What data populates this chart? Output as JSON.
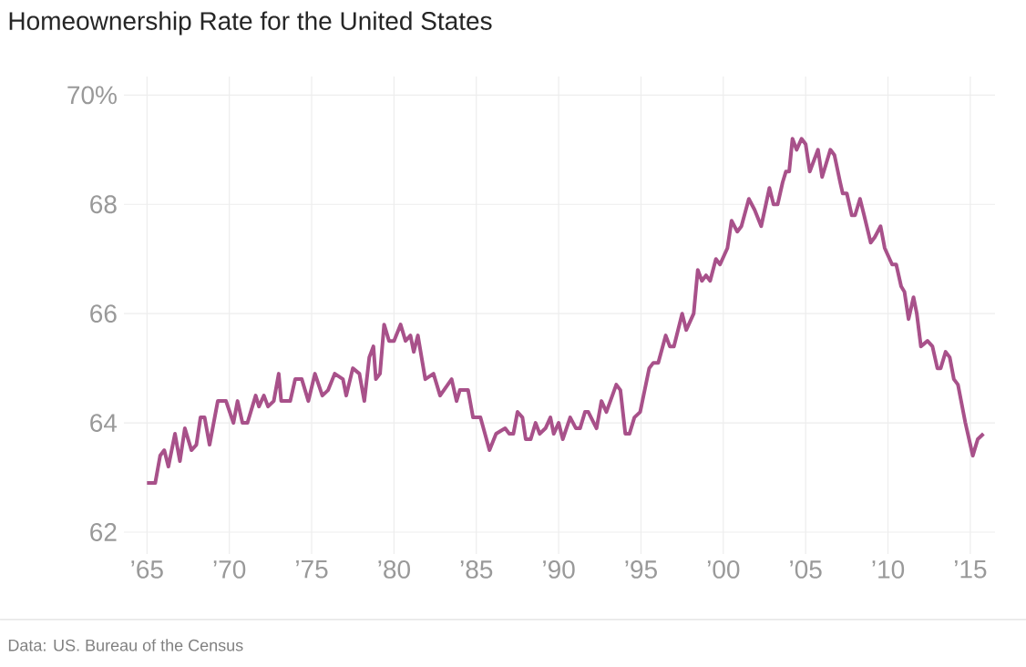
{
  "chart_data": {
    "type": "line",
    "title": "Homeownership Rate for the United States",
    "x": [
      1965.0,
      1965.5,
      1965.8,
      1966.05,
      1966.3,
      1966.7,
      1967.0,
      1967.3,
      1967.7,
      1968.0,
      1968.25,
      1968.5,
      1968.8,
      1969.3,
      1969.8,
      1970.25,
      1970.5,
      1970.8,
      1971.1,
      1971.6,
      1971.8,
      1972.1,
      1972.35,
      1972.7,
      1973.0,
      1973.15,
      1973.7,
      1974.0,
      1974.4,
      1974.8,
      1975.2,
      1975.65,
      1976.0,
      1976.4,
      1976.9,
      1977.1,
      1977.5,
      1977.9,
      1978.2,
      1978.5,
      1978.75,
      1978.9,
      1979.15,
      1979.4,
      1979.7,
      1980.0,
      1980.4,
      1980.7,
      1981.0,
      1981.2,
      1981.45,
      1981.9,
      1982.4,
      1982.8,
      1983.5,
      1983.8,
      1984.0,
      1984.5,
      1984.8,
      1985.25,
      1985.8,
      1986.2,
      1986.75,
      1987.0,
      1987.25,
      1987.5,
      1987.8,
      1988.0,
      1988.3,
      1988.6,
      1988.85,
      1989.2,
      1989.5,
      1989.7,
      1990.0,
      1990.25,
      1990.7,
      1991.05,
      1991.3,
      1991.6,
      1991.8,
      1992.3,
      1992.6,
      1992.9,
      1993.5,
      1993.75,
      1994.05,
      1994.3,
      1994.6,
      1994.95,
      1995.5,
      1995.75,
      1996.05,
      1996.5,
      1996.75,
      1997.0,
      1997.5,
      1997.75,
      1998.2,
      1998.45,
      1998.7,
      1998.95,
      1999.2,
      1999.55,
      1999.8,
      2000.25,
      2000.5,
      2000.85,
      2001.1,
      2001.55,
      2001.9,
      2002.3,
      2002.8,
      2003.05,
      2003.3,
      2003.6,
      2003.8,
      2004.0,
      2004.2,
      2004.45,
      2004.75,
      2005.0,
      2005.25,
      2005.75,
      2006.0,
      2006.5,
      2006.75,
      2007.1,
      2007.25,
      2007.5,
      2007.8,
      2008.0,
      2008.3,
      2008.55,
      2008.95,
      2009.2,
      2009.55,
      2009.8,
      2010.25,
      2010.5,
      2010.8,
      2011.0,
      2011.25,
      2011.55,
      2011.75,
      2012.0,
      2012.4,
      2012.7,
      2013.0,
      2013.2,
      2013.5,
      2013.75,
      2014.0,
      2014.25,
      2014.7,
      2015.15,
      2015.45,
      2015.8
    ],
    "values": [
      62.9,
      62.9,
      63.4,
      63.5,
      63.2,
      63.8,
      63.3,
      63.9,
      63.5,
      63.6,
      64.1,
      64.1,
      63.6,
      64.4,
      64.4,
      64.0,
      64.4,
      64.0,
      64.0,
      64.5,
      64.3,
      64.5,
      64.3,
      64.4,
      64.9,
      64.4,
      64.4,
      64.8,
      64.8,
      64.4,
      64.9,
      64.5,
      64.6,
      64.9,
      64.8,
      64.5,
      65.0,
      64.9,
      64.4,
      65.2,
      65.4,
      64.8,
      64.9,
      65.8,
      65.5,
      65.5,
      65.8,
      65.5,
      65.6,
      65.3,
      65.6,
      64.8,
      64.9,
      64.5,
      64.8,
      64.4,
      64.6,
      64.6,
      64.1,
      64.1,
      63.5,
      63.8,
      63.9,
      63.8,
      63.8,
      64.2,
      64.1,
      63.7,
      63.7,
      64.0,
      63.8,
      63.9,
      64.1,
      63.8,
      64.0,
      63.7,
      64.1,
      63.9,
      63.9,
      64.2,
      64.2,
      63.9,
      64.4,
      64.2,
      64.7,
      64.6,
      63.8,
      63.8,
      64.1,
      64.2,
      65.0,
      65.1,
      65.1,
      65.6,
      65.4,
      65.4,
      66.0,
      65.7,
      66.0,
      66.8,
      66.6,
      66.7,
      66.6,
      67.0,
      66.9,
      67.2,
      67.7,
      67.5,
      67.6,
      68.1,
      67.9,
      67.6,
      68.3,
      68.0,
      68.0,
      68.4,
      68.6,
      68.6,
      69.2,
      69.0,
      69.2,
      69.1,
      68.6,
      69.0,
      68.5,
      69.0,
      68.9,
      68.4,
      68.2,
      68.2,
      67.8,
      67.8,
      68.1,
      67.8,
      67.3,
      67.4,
      67.6,
      67.2,
      66.9,
      66.9,
      66.5,
      66.4,
      65.9,
      66.3,
      66.0,
      65.4,
      65.5,
      65.4,
      65.0,
      65.0,
      65.3,
      65.2,
      64.8,
      64.7,
      64.0,
      63.4,
      63.7,
      63.8
    ],
    "color": "#a8518a",
    "marker": "none",
    "line_style": "solid",
    "grid": true,
    "xlim": [
      1963.6,
      2016.5
    ],
    "ylim": [
      61.6,
      70.34
    ],
    "xticks": [
      {
        "value": 1965,
        "label": "’65"
      },
      {
        "value": 1970,
        "label": "’70"
      },
      {
        "value": 1975,
        "label": "’75"
      },
      {
        "value": 1980,
        "label": "’80"
      },
      {
        "value": 1985,
        "label": "’85"
      },
      {
        "value": 1990,
        "label": "’90"
      },
      {
        "value": 1995,
        "label": "’95"
      },
      {
        "value": 2000,
        "label": "’00"
      },
      {
        "value": 2005,
        "label": "’05"
      },
      {
        "value": 2010,
        "label": "’10"
      },
      {
        "value": 2015,
        "label": "’15"
      }
    ],
    "yticks": [
      {
        "value": 62,
        "label": "62"
      },
      {
        "value": 64,
        "label": "64"
      },
      {
        "value": 66,
        "label": "66"
      },
      {
        "value": 68,
        "label": "68"
      },
      {
        "value": 70,
        "label": "70%"
      }
    ],
    "annotations": [
      "Data: US. Bureau of the Census"
    ]
  }
}
